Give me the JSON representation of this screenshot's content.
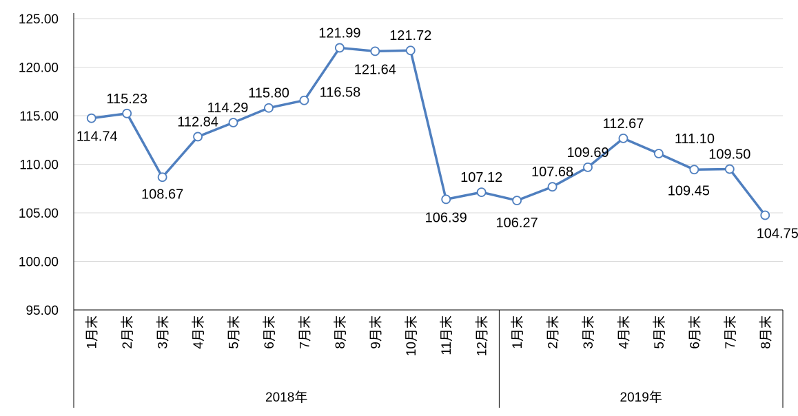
{
  "chart_data": {
    "type": "line",
    "title": "",
    "xlabel": "",
    "ylabel": "",
    "ylim": [
      95,
      125
    ],
    "yticks": [
      "95.00",
      "100.00",
      "105.00",
      "110.00",
      "115.00",
      "120.00",
      "125.00"
    ],
    "grid": true,
    "legend": "none",
    "line_color": "#4F7FBF",
    "marker": "hollow-circle",
    "groups": [
      {
        "label": "2018年",
        "categories": [
          "1月末",
          "2月末",
          "3月末",
          "4月末",
          "5月末",
          "6月末",
          "7月末",
          "8月末",
          "9月末",
          "10月末",
          "11月末",
          "12月末"
        ]
      },
      {
        "label": "2019年",
        "categories": [
          "1月末",
          "2月末",
          "3月末",
          "4月末",
          "5月末",
          "6月末",
          "7月末",
          "8月末"
        ]
      }
    ],
    "values": [
      114.74,
      115.23,
      108.67,
      112.84,
      114.29,
      115.8,
      116.58,
      121.99,
      121.64,
      121.72,
      106.39,
      107.12,
      106.27,
      107.68,
      109.69,
      112.67,
      111.1,
      109.45,
      109.5,
      104.75
    ],
    "data_labels": [
      "114.74",
      "115.23",
      "108.67",
      "112.84",
      "114.29",
      "115.80",
      "116.58",
      "121.99",
      "121.64",
      "121.72",
      "106.39",
      "107.12",
      "106.27",
      "107.68",
      "109.69",
      "112.67",
      "111.10",
      "109.45",
      "109.50",
      "104.75"
    ]
  }
}
